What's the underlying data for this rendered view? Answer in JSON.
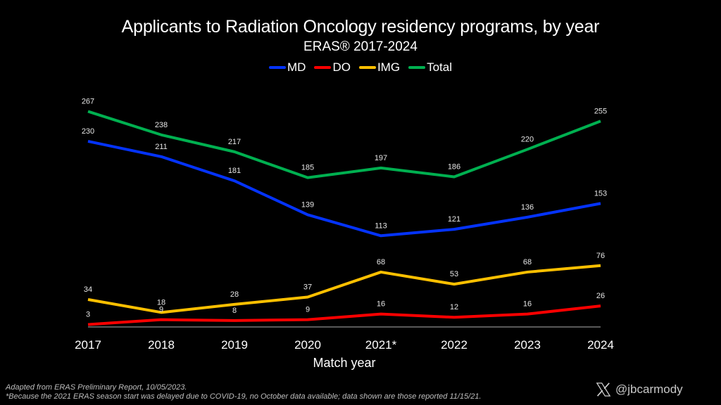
{
  "chart_data": {
    "type": "line",
    "title": "Applicants to Radiation Oncology residency programs, by year",
    "subtitle": "ERAS® 2017-2024",
    "xlabel": "Match year",
    "ylabel": "",
    "categories": [
      "2017",
      "2018",
      "2019",
      "2020",
      "2021*",
      "2022",
      "2023",
      "2024"
    ],
    "ylim": [
      0,
      270
    ],
    "grid": false,
    "legend_position": "top-center",
    "series": [
      {
        "name": "MD",
        "color": "#0433ff",
        "values": [
          230,
          211,
          181,
          139,
          113,
          121,
          136,
          153
        ]
      },
      {
        "name": "DO",
        "color": "#ff0000",
        "values": [
          3,
          9,
          8,
          9,
          16,
          12,
          16,
          26
        ]
      },
      {
        "name": "IMG",
        "color": "#ffc000",
        "values": [
          34,
          18,
          28,
          37,
          68,
          53,
          68,
          76
        ]
      },
      {
        "name": "Total",
        "color": "#00b050",
        "values": [
          267,
          238,
          217,
          185,
          197,
          186,
          220,
          255
        ]
      }
    ]
  },
  "footnotes": {
    "source": "Adapted from ERAS Preliminary Report, 10/05/2023.",
    "note": "*Because the 2021 ERAS season start was delayed due to COVID-19, no October data available; data shown are those reported 11/15/21."
  },
  "credit": {
    "icon": "x-logo-icon",
    "handle": "@jbcarmody"
  }
}
